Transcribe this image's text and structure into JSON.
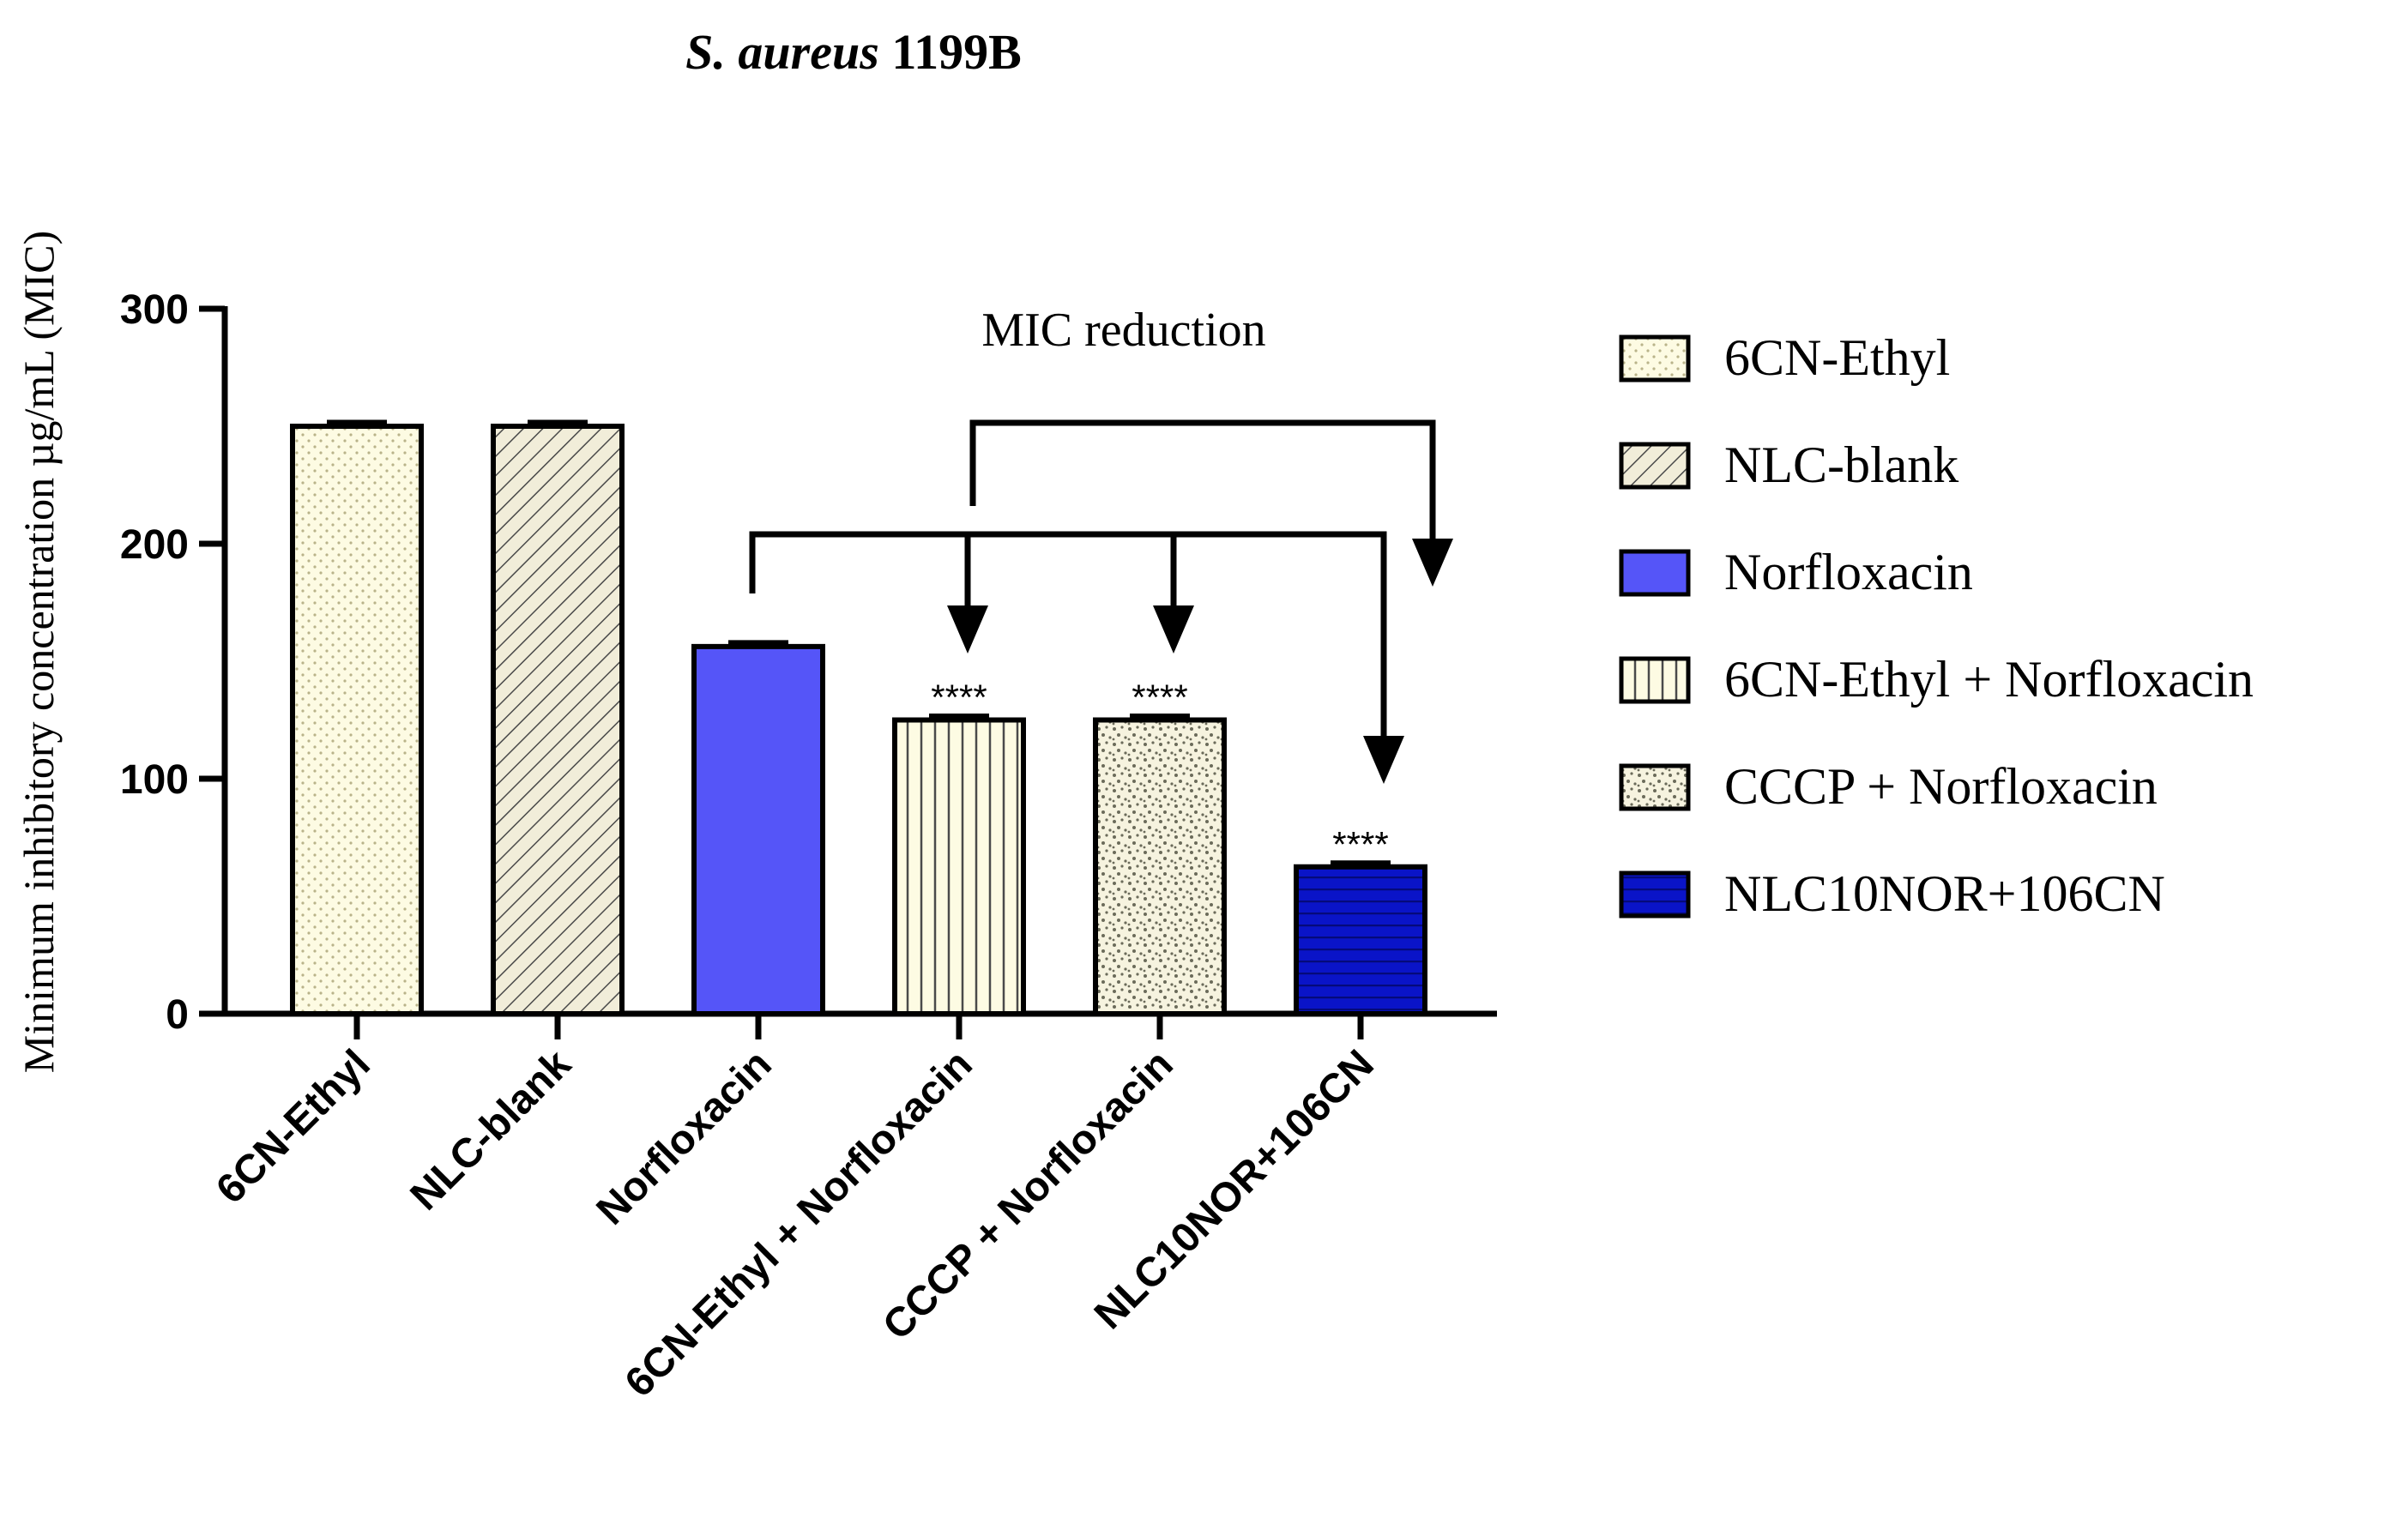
{
  "chart_data": {
    "type": "bar",
    "title_italic": "S. aureus",
    "title_rest": " 1199B",
    "ylabel": "Minimum inhibitory concentration µg/mL (MIC)",
    "xlabel": "",
    "ylim": [
      0,
      300
    ],
    "yticks": [
      0,
      100,
      200,
      300
    ],
    "categories": [
      "6CN-Ethyl",
      "NLC-blank",
      "Norfloxacin",
      "6CN-Ethyl + Norfloxacin",
      "CCCP + Norfloxacin",
      "NLC10NOR+106CN"
    ],
    "values": [
      250,
      250,
      156.25,
      125,
      125,
      62.5
    ],
    "significance": [
      "",
      "",
      "",
      "****",
      "****",
      "****"
    ],
    "annotation": "MIC reduction",
    "legend": [
      {
        "label": "6CN-Ethyl",
        "fill": "#fdfbe3",
        "pattern": "dots"
      },
      {
        "label": "NLC-blank",
        "fill": "#f1edd9",
        "pattern": "diagonal"
      },
      {
        "label": "Norfloxacin",
        "fill": "#5555f8",
        "pattern": "none"
      },
      {
        "label": "6CN-Ethyl + Norfloxacin",
        "fill": "#fdfbe3",
        "pattern": "vertical"
      },
      {
        "label": "CCCP + Norfloxacin",
        "fill": "#f6f3df",
        "pattern": "speckle"
      },
      {
        "label": "NLC10NOR+106CN",
        "fill": "#0a14c8",
        "pattern": "horizontal"
      }
    ],
    "legend_position": "right"
  }
}
